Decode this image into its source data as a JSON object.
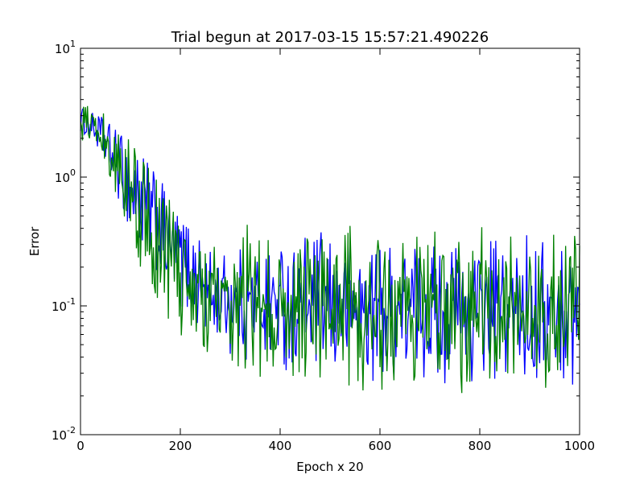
{
  "chart_data": {
    "type": "line",
    "title": "Trial begun at 2017-03-15 15:57:21.490226",
    "xlabel": "Epoch x 20",
    "ylabel": "Error",
    "xlim": [
      0,
      1000
    ],
    "ylim": [
      0.01,
      10
    ],
    "yscale": "log",
    "grid": false,
    "x_ticks": [
      {
        "value": 0,
        "label": "0"
      },
      {
        "value": 200,
        "label": "200"
      },
      {
        "value": 400,
        "label": "400"
      },
      {
        "value": 600,
        "label": "600"
      },
      {
        "value": 800,
        "label": "800"
      },
      {
        "value": 1000,
        "label": "1000"
      }
    ],
    "y_ticks": [
      {
        "value": 0.01,
        "base": "10",
        "exp": "-2"
      },
      {
        "value": 0.1,
        "base": "10",
        "exp": "-1"
      },
      {
        "value": 1,
        "base": "10",
        "exp": "0"
      },
      {
        "value": 10,
        "base": "10",
        "exp": "1"
      }
    ],
    "series": [
      {
        "color": "#0000ff",
        "x": [
          0,
          20,
          40,
          60,
          80,
          100,
          120,
          140,
          160,
          180,
          200,
          220,
          240,
          260,
          280,
          300,
          350,
          400,
          450,
          500,
          550,
          600,
          650,
          700,
          750,
          800,
          850,
          900,
          950,
          1000
        ],
        "y_low": [
          2.2,
          2.0,
          1.5,
          1.0,
          0.6,
          0.35,
          0.25,
          0.2,
          0.17,
          0.12,
          0.1,
          0.08,
          0.06,
          0.05,
          0.045,
          0.04,
          0.032,
          0.03,
          0.026,
          0.024,
          0.024,
          0.023,
          0.023,
          0.024,
          0.022,
          0.022,
          0.022,
          0.022,
          0.02,
          0.022
        ],
        "y_high": [
          3.6,
          3.2,
          3.0,
          2.6,
          2.2,
          1.8,
          1.8,
          1.2,
          1.0,
          0.6,
          0.5,
          0.45,
          0.35,
          0.3,
          0.3,
          0.3,
          0.35,
          0.38,
          0.38,
          0.38,
          0.38,
          0.38,
          0.38,
          0.38,
          0.38,
          0.38,
          0.38,
          0.38,
          0.38,
          0.38
        ]
      },
      {
        "color": "#008000",
        "x": [
          0,
          20,
          40,
          60,
          80,
          100,
          120,
          140,
          160,
          180,
          200,
          220,
          240,
          260,
          280,
          300,
          350,
          400,
          450,
          500,
          550,
          600,
          650,
          700,
          750,
          800,
          850,
          900,
          950,
          1000
        ],
        "y_low": [
          2.0,
          1.6,
          1.2,
          0.9,
          0.5,
          0.3,
          0.2,
          0.15,
          0.1,
          0.07,
          0.06,
          0.05,
          0.045,
          0.04,
          0.035,
          0.03,
          0.028,
          0.025,
          0.022,
          0.021,
          0.021,
          0.02,
          0.02,
          0.02,
          0.02,
          0.019,
          0.02,
          0.02,
          0.02,
          0.021
        ],
        "y_high": [
          3.8,
          3.6,
          3.4,
          3.0,
          2.6,
          2.0,
          1.4,
          1.2,
          1.0,
          0.8,
          0.5,
          0.4,
          0.3,
          0.35,
          0.4,
          0.45,
          0.45,
          0.48,
          0.47,
          0.47,
          0.46,
          0.46,
          0.45,
          0.44,
          0.44,
          0.44,
          0.42,
          0.42,
          0.42,
          0.42
        ]
      }
    ]
  }
}
